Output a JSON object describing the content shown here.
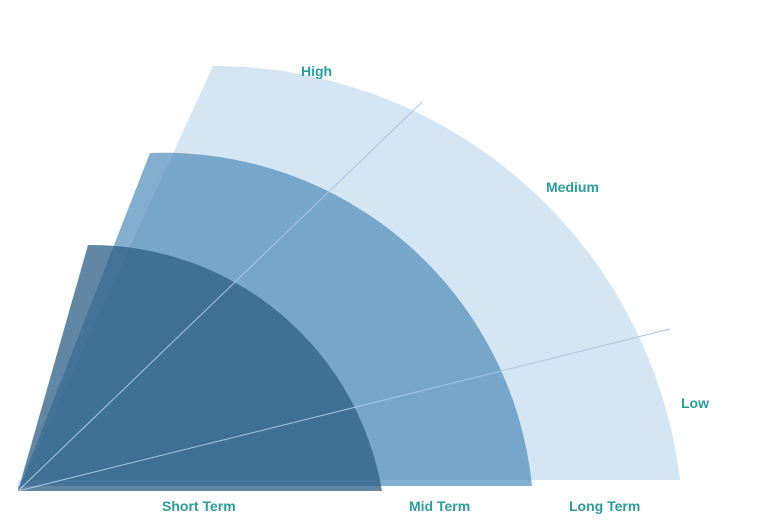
{
  "diagram": {
    "arcs": [
      {
        "name": "long-term",
        "label": "Long Term",
        "fill": "#d4e5f3",
        "opacity": 1
      },
      {
        "name": "mid-term",
        "label": "Mid Term",
        "fill": "#4f8bb8",
        "opacity": 0.7
      },
      {
        "name": "short-term",
        "label": "Short Term",
        "fill": "#2d5f86",
        "opacity": 0.75
      }
    ],
    "levels": [
      {
        "name": "high",
        "label": "High"
      },
      {
        "name": "medium",
        "label": "Medium"
      },
      {
        "name": "low",
        "label": "Low"
      }
    ],
    "colors": {
      "label_text": "#2a9d9a",
      "divider_line": "#a9c8e4"
    }
  }
}
